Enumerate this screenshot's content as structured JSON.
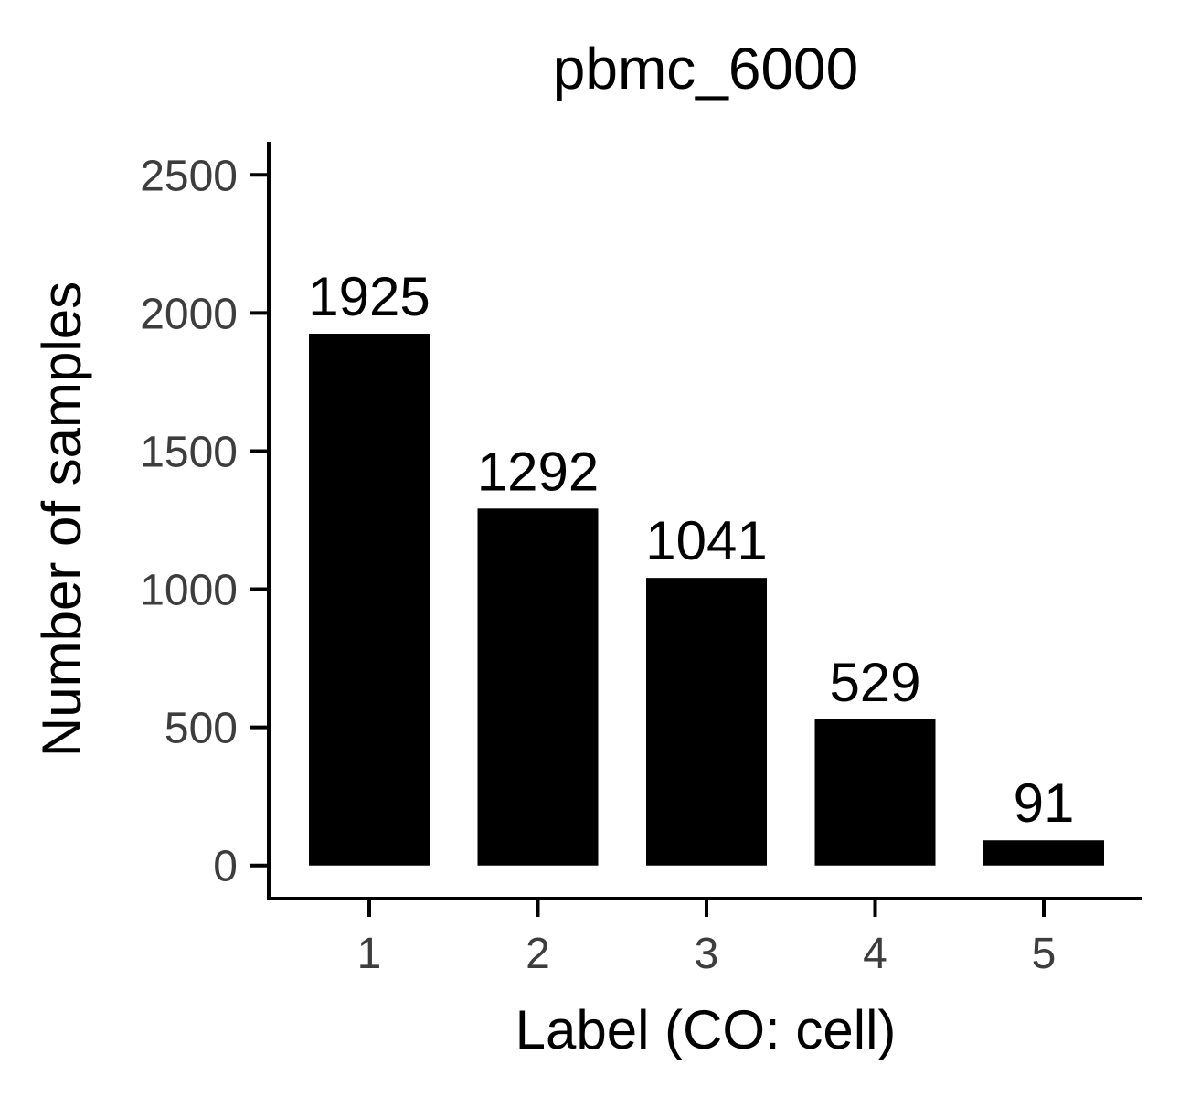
{
  "chart_data": {
    "type": "bar",
    "title": "pbmc_6000",
    "xlabel": "Label (CO: cell)",
    "ylabel": "Number of samples",
    "categories": [
      "1",
      "2",
      "3",
      "4",
      "5"
    ],
    "values": [
      1925,
      1292,
      1041,
      529,
      91
    ],
    "data_labels": [
      "1925",
      "1292",
      "1041",
      "529",
      "91"
    ],
    "yticks": [
      0,
      500,
      1000,
      1500,
      2000,
      2500
    ],
    "ytick_labels": [
      "0",
      "500",
      "1000",
      "1500",
      "2000",
      "2500"
    ],
    "ylim": [
      -120,
      2620
    ],
    "grid": false,
    "legend": "none",
    "bar_color": "#000000",
    "tick_label_color": "#3d3d3d"
  }
}
